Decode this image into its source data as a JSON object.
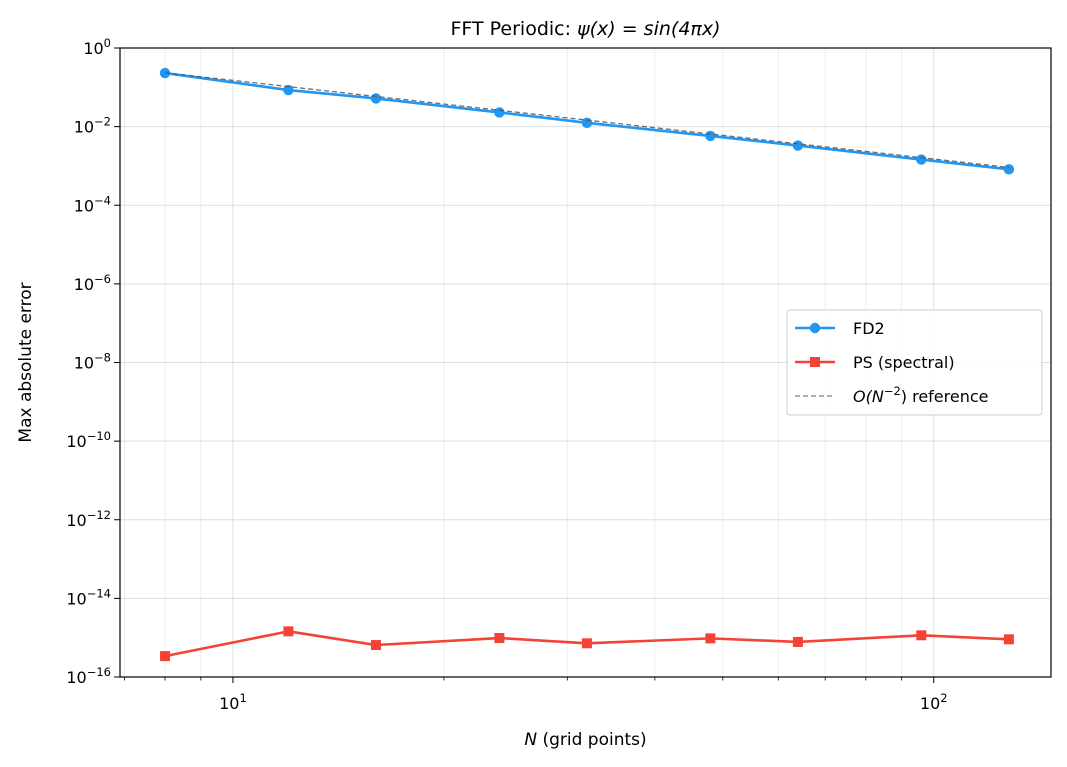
{
  "chart_data": {
    "type": "line",
    "title_prefix": "FFT Periodic: ",
    "title_math": "ψ(x) = sin(4πx)",
    "xlabel_var": "N",
    "xlabel_rest": " (grid points)",
    "ylabel": "Max absolute error",
    "x_scale": "log",
    "y_scale": "log",
    "xlim": [
      6.9,
      147
    ],
    "ylim": [
      1e-16,
      1
    ],
    "grid": true,
    "legend_position": "center-right",
    "x_ticks": [
      {
        "base": "10",
        "exp": "1",
        "value": 10
      },
      {
        "base": "10",
        "exp": "2",
        "value": 100
      }
    ],
    "y_ticks": [
      {
        "base": "10",
        "exp": "0",
        "value": 1
      },
      {
        "base": "10",
        "exp": "−2",
        "value": 0.01
      },
      {
        "base": "10",
        "exp": "−4",
        "value": 0.0001
      },
      {
        "base": "10",
        "exp": "−6",
        "value": 1e-06
      },
      {
        "base": "10",
        "exp": "−8",
        "value": 1e-08
      },
      {
        "base": "10",
        "exp": "−10",
        "value": 1e-10
      },
      {
        "base": "10",
        "exp": "−12",
        "value": 1e-12
      },
      {
        "base": "10",
        "exp": "−14",
        "value": 1e-14
      },
      {
        "base": "10",
        "exp": "−16",
        "value": 1e-16
      }
    ],
    "x": [
      8,
      12,
      16,
      24,
      32,
      48,
      64,
      96,
      128
    ],
    "series": [
      {
        "name": "FD2",
        "color": "#2196f3",
        "marker": "circle",
        "style": "solid",
        "values": [
          0.23,
          0.085,
          0.052,
          0.023,
          0.0125,
          0.0058,
          0.0033,
          0.00145,
          0.00082
        ]
      },
      {
        "name": "PS (spectral)",
        "color": "#f44336",
        "marker": "square",
        "style": "solid",
        "values": [
          3.4e-16,
          1.45e-15,
          6.5e-16,
          9.8e-16,
          7.2e-16,
          9.6e-16,
          7.8e-16,
          1.15e-15,
          9.1e-16
        ]
      },
      {
        "name_parts": {
          "pre": "O(N",
          "sup": "−2",
          "post": ") reference"
        },
        "color": "#808080",
        "marker": "none",
        "style": "dashed",
        "values": [
          0.2345,
          0.1042,
          0.0586,
          0.0261,
          0.01466,
          0.00651,
          0.00366,
          0.00163,
          0.000916
        ]
      }
    ]
  }
}
